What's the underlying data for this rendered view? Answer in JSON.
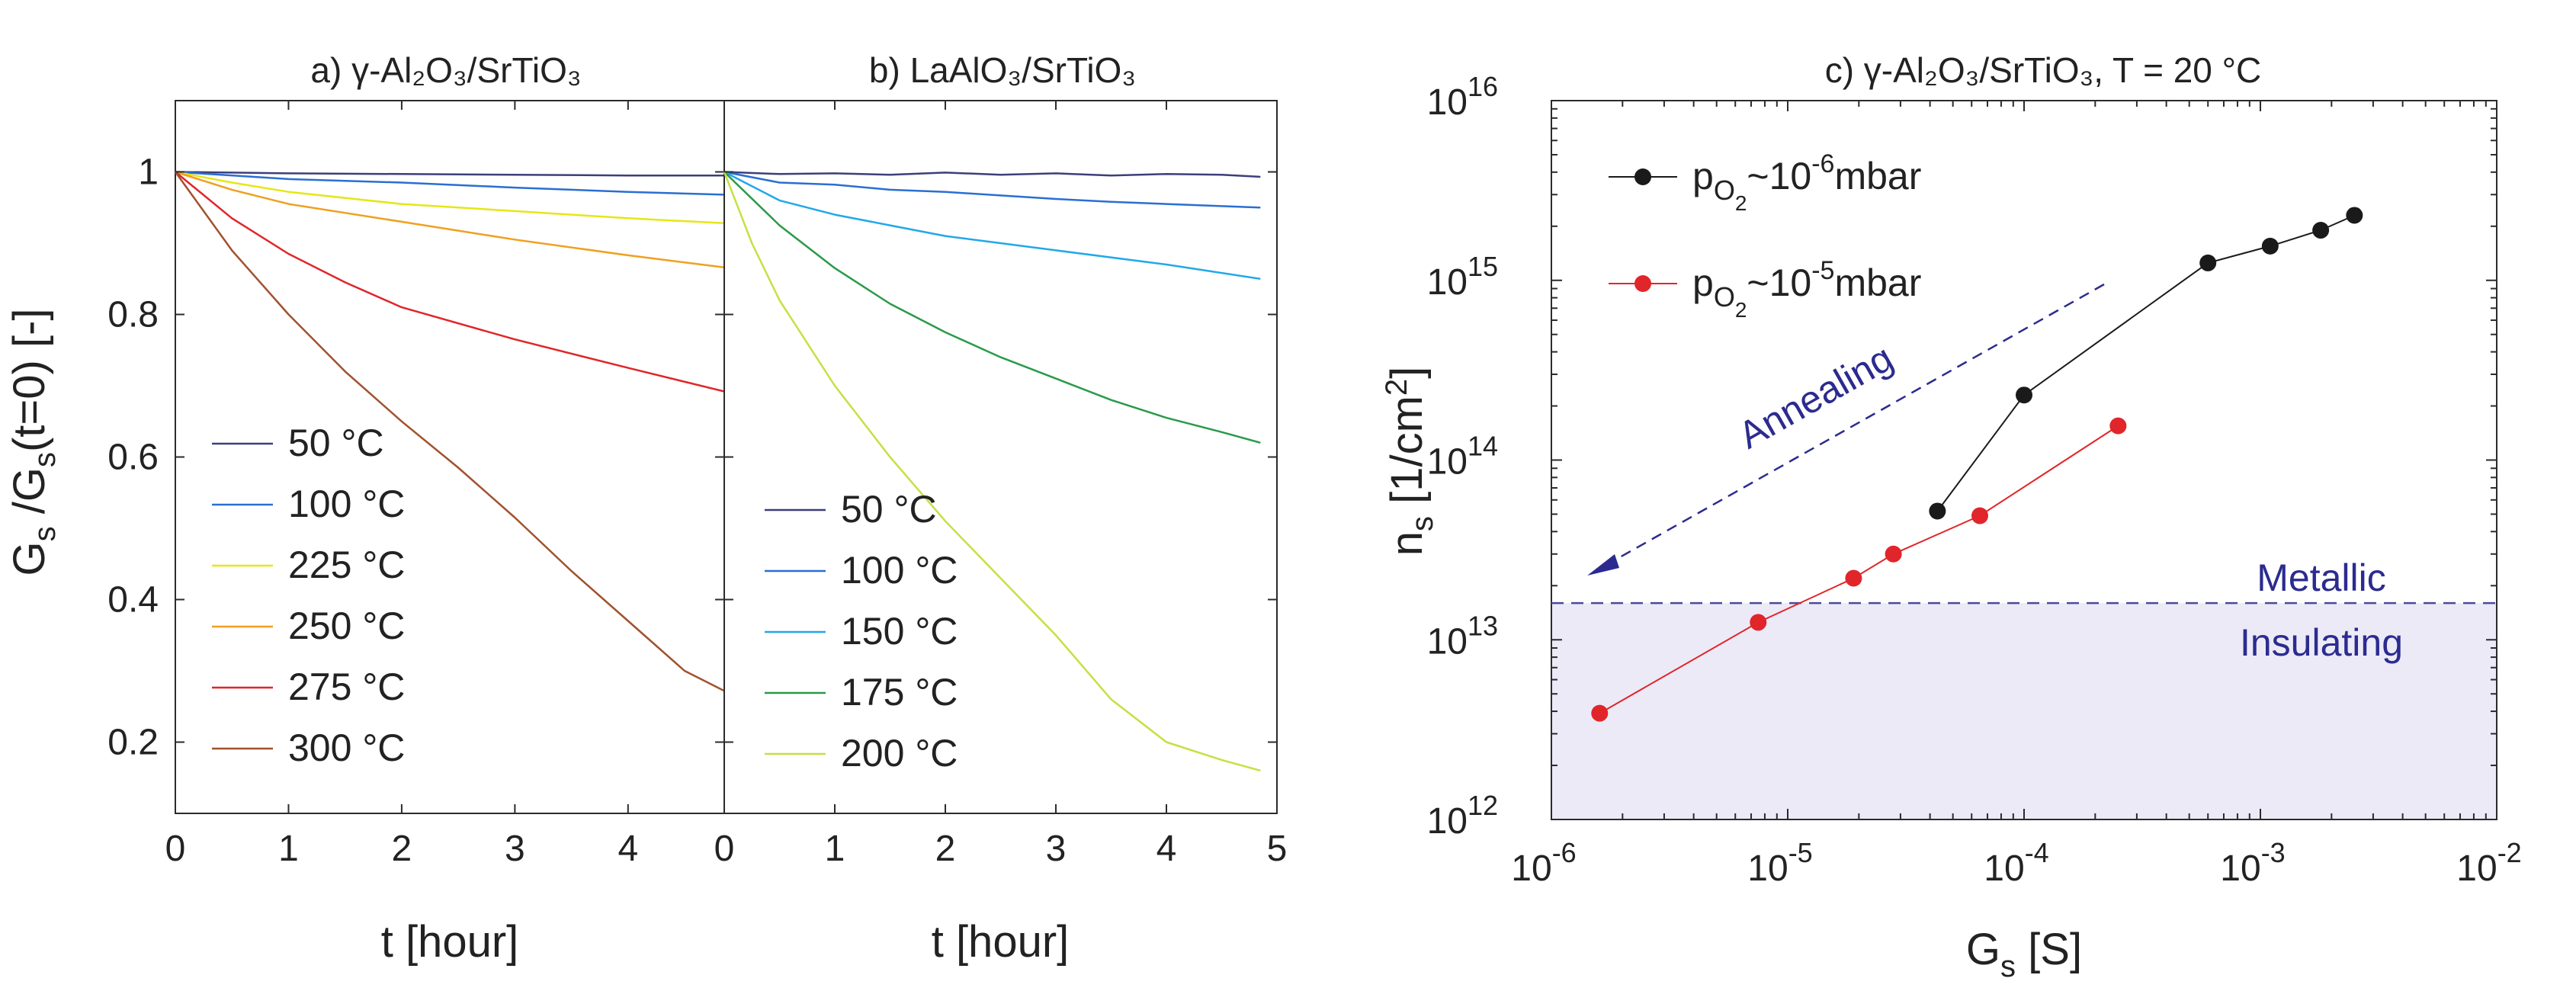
{
  "chart_data": [
    {
      "type": "line",
      "panel": "a",
      "title": "a) γ-Al₂O₃/SrTiO₃",
      "xlabel": "t [hour]",
      "ylabel": "G_s /G_s(t=0) [-]",
      "ylabel_parts": [
        "G",
        "s",
        " /G",
        "s",
        "(t=0) [-]"
      ],
      "xlim": [
        0,
        4.85
      ],
      "ylim": [
        0.1,
        1.1
      ],
      "xticks": [
        0,
        1,
        2,
        3,
        4
      ],
      "yticks": [
        0.2,
        0.4,
        0.6,
        0.8,
        1
      ],
      "ytick_labels": [
        "0.2",
        "0.4",
        "0.6",
        "0.8",
        "1"
      ],
      "legend_position": "lower-left",
      "series": [
        {
          "name": "50 °C",
          "color": "#3c3f7a",
          "x": [
            0,
            1,
            2,
            3,
            4,
            4.85
          ],
          "y": [
            1.0,
            0.998,
            0.997,
            0.996,
            0.995,
            0.995
          ]
        },
        {
          "name": "100 °C",
          "color": "#2a6fd1",
          "x": [
            0,
            1,
            2,
            3,
            4,
            4.85
          ],
          "y": [
            1.0,
            0.99,
            0.985,
            0.978,
            0.972,
            0.968
          ]
        },
        {
          "name": "225 °C",
          "color": "#e6e617",
          "x": [
            0,
            0.5,
            1,
            2,
            3,
            4,
            4.85
          ],
          "y": [
            1.0,
            0.985,
            0.972,
            0.955,
            0.945,
            0.935,
            0.928
          ]
        },
        {
          "name": "250 °C",
          "color": "#f0a020",
          "x": [
            0,
            0.5,
            1,
            2,
            3,
            4,
            4.85
          ],
          "y": [
            1.0,
            0.975,
            0.955,
            0.93,
            0.905,
            0.883,
            0.866
          ]
        },
        {
          "name": "275 °C",
          "color": "#e0262a",
          "x": [
            0,
            0.5,
            1,
            1.5,
            2,
            3,
            4,
            4.85
          ],
          "y": [
            1.0,
            0.935,
            0.885,
            0.845,
            0.81,
            0.765,
            0.725,
            0.692
          ]
        },
        {
          "name": "300 °C",
          "color": "#a0522d",
          "x": [
            0,
            0.5,
            1,
            1.5,
            2,
            2.5,
            3,
            3.5,
            4,
            4.5,
            4.85
          ],
          "y": [
            1.0,
            0.89,
            0.8,
            0.72,
            0.65,
            0.585,
            0.515,
            0.44,
            0.37,
            0.3,
            0.272
          ]
        }
      ]
    },
    {
      "type": "line",
      "panel": "b",
      "title": "b) LaAlO₃/SrTiO₃",
      "xlabel": "t [hour]",
      "xlim": [
        0,
        5
      ],
      "ylim": [
        0.1,
        1.1
      ],
      "xticks": [
        0,
        1,
        2,
        3,
        4,
        5
      ],
      "legend_position": "lower-left",
      "series": [
        {
          "name": "50 °C",
          "color": "#3c3f7a",
          "x": [
            0,
            0.5,
            1,
            1.5,
            2,
            2.5,
            3,
            3.5,
            4,
            4.5,
            4.85
          ],
          "y": [
            1.0,
            0.997,
            0.998,
            0.996,
            0.999,
            0.996,
            0.998,
            0.995,
            0.997,
            0.996,
            0.993
          ]
        },
        {
          "name": "100 °C",
          "color": "#2a6fd1",
          "x": [
            0,
            0.5,
            1,
            1.5,
            2,
            2.5,
            3,
            3.5,
            4,
            4.5,
            4.85
          ],
          "y": [
            1.0,
            0.985,
            0.982,
            0.975,
            0.972,
            0.967,
            0.962,
            0.958,
            0.955,
            0.952,
            0.95
          ]
        },
        {
          "name": "150 °C",
          "color": "#22a8e8",
          "x": [
            0,
            0.5,
            1,
            1.5,
            2,
            3,
            4,
            4.85
          ],
          "y": [
            1.0,
            0.96,
            0.94,
            0.925,
            0.91,
            0.89,
            0.87,
            0.85
          ]
        },
        {
          "name": "175 °C",
          "color": "#2a9a4a",
          "x": [
            0,
            0.5,
            1,
            1.5,
            2,
            2.5,
            3,
            3.5,
            4,
            4.5,
            4.85
          ],
          "y": [
            1.0,
            0.925,
            0.865,
            0.815,
            0.775,
            0.74,
            0.71,
            0.68,
            0.655,
            0.635,
            0.62
          ]
        },
        {
          "name": "200 °C",
          "color": "#c6e043",
          "x": [
            0,
            0.25,
            0.5,
            1,
            1.5,
            2,
            2.5,
            3,
            3.5,
            4,
            4.5,
            4.85
          ],
          "y": [
            1.0,
            0.9,
            0.82,
            0.7,
            0.6,
            0.51,
            0.43,
            0.35,
            0.26,
            0.2,
            0.175,
            0.16
          ]
        }
      ]
    },
    {
      "type": "scatter",
      "panel": "c",
      "title": "c) γ-Al₂O₃/SrTiO₃, T = 20 °C",
      "xlabel": "G_s [S]",
      "xlabel_parts": [
        "G",
        "s",
        " [S]"
      ],
      "ylabel": "n_s [1/cm²]",
      "ylabel_parts": [
        "n",
        "s",
        " [1/cm",
        "2",
        "]"
      ],
      "xscale": "log",
      "yscale": "log",
      "xlim_exp": [
        -6,
        -2
      ],
      "ylim_exp": [
        12,
        16
      ],
      "xtick_exponents": [
        "-6",
        "-5",
        "-4",
        "-3",
        "-2"
      ],
      "ytick_exponents": [
        "12",
        "13",
        "14",
        "15",
        "16"
      ],
      "tick_base": "10",
      "metallic_threshold": 16000000000000.0,
      "region_labels": {
        "metallic": "Metallic",
        "insulating": "Insulating"
      },
      "annotation": "Annealing",
      "legend_position": "top-left",
      "series": [
        {
          "name": "p_O2 ~10^-6 mbar",
          "color": "#1a1a1a",
          "label_parts": [
            "p",
            "O",
            "2",
            "~10",
            "-6",
            "mbar"
          ],
          "x": [
            4.3e-05,
            0.0001,
            0.0006,
            0.0011,
            0.0018,
            0.0025
          ],
          "y": [
            52000000000000.0,
            230000000000000.0,
            1250000000000000.0,
            1550000000000000.0,
            1900000000000000.0,
            2300000000000000.0
          ]
        },
        {
          "name": "p_O2 ~10^-5 mbar",
          "color": "#e0262a",
          "label_parts": [
            "p",
            "O",
            "2",
            "~10",
            "-5",
            "mbar"
          ],
          "x": [
            1.6e-06,
            7.5e-06,
            1.9e-05,
            2.8e-05,
            6.5e-05,
            0.00025
          ],
          "y": [
            3900000000000.0,
            12500000000000.0,
            22000000000000.0,
            30000000000000.0,
            49000000000000.0,
            155000000000000.0
          ]
        }
      ]
    }
  ]
}
